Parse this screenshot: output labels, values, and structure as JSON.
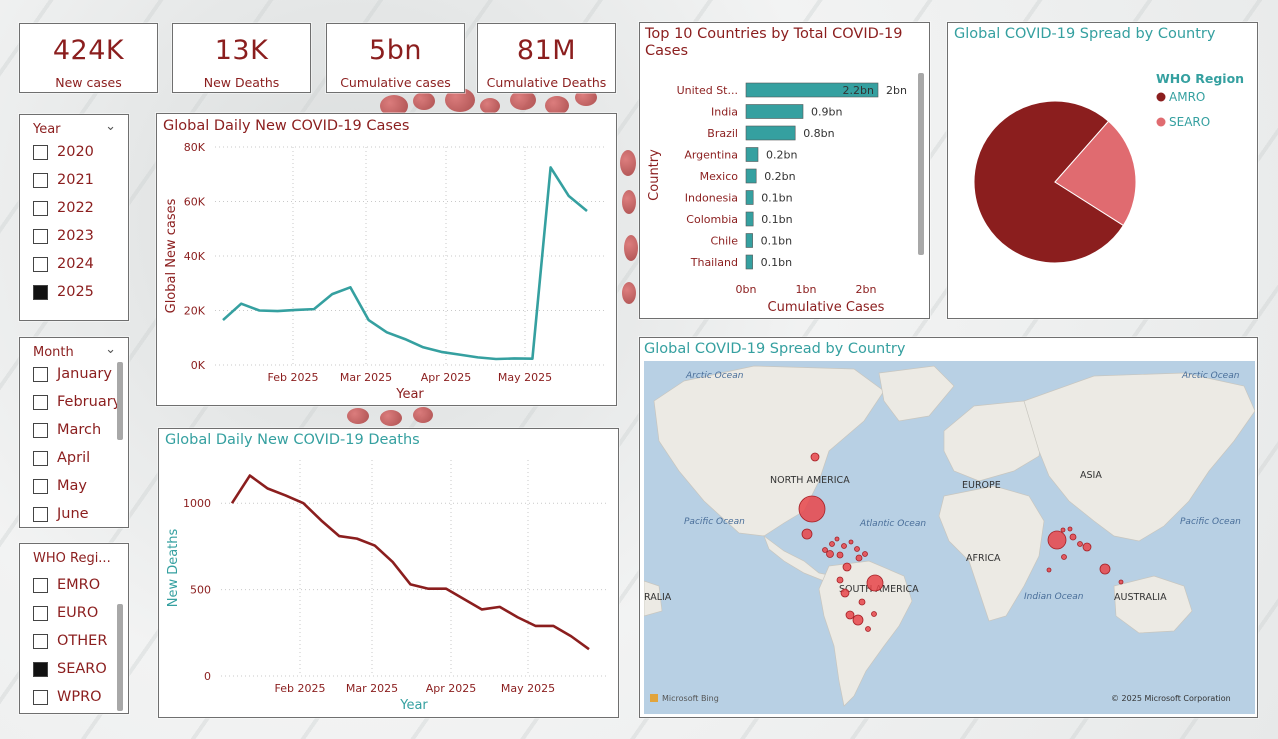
{
  "kpis": [
    {
      "value": "424K",
      "label": "New cases"
    },
    {
      "value": "13K",
      "label": "New Deaths"
    },
    {
      "value": "5bn",
      "label": "Cumulative cases"
    },
    {
      "value": "81M",
      "label": "Cumulative Deaths"
    }
  ],
  "slicers": {
    "year": {
      "title": "Year",
      "items": [
        {
          "label": "2020",
          "checked": false
        },
        {
          "label": "2021",
          "checked": false
        },
        {
          "label": "2022",
          "checked": false
        },
        {
          "label": "2023",
          "checked": false
        },
        {
          "label": "2024",
          "checked": false
        },
        {
          "label": "2025",
          "checked": true
        }
      ]
    },
    "month": {
      "title": "Month",
      "items": [
        {
          "label": "January",
          "checked": false
        },
        {
          "label": "February",
          "checked": false
        },
        {
          "label": "March",
          "checked": false
        },
        {
          "label": "April",
          "checked": false
        },
        {
          "label": "May",
          "checked": false
        },
        {
          "label": "June",
          "checked": false
        }
      ]
    },
    "who": {
      "title": "WHO Regi...",
      "items": [
        {
          "label": "EMRO",
          "checked": false
        },
        {
          "label": "EURO",
          "checked": false
        },
        {
          "label": "OTHER",
          "checked": false
        },
        {
          "label": "SEARO",
          "checked": true
        },
        {
          "label": "WPRO",
          "checked": false
        }
      ]
    }
  },
  "panels": {
    "cases_title": "Global Daily New COVID-19 Cases",
    "deaths_title": "Global Daily New COVID-19 Deaths",
    "top10_title_line1": "Top 10 Countries by Total COVID-19",
    "top10_title_line2": "Cases",
    "pie_title": "Global COVID-19 Spread by Country",
    "map_title": "Global COVID-19 Spread by Country"
  },
  "map": {
    "labels": {
      "arctic_left": "Arctic Ocean",
      "arctic_right": "Arctic Ocean",
      "north_america": "NORTH AMERICA",
      "europe": "EUROPE",
      "asia": "ASIA",
      "pacific_left": "Pacific Ocean",
      "atlantic": "Atlantic Ocean",
      "pacific_right": "Pacific Ocean",
      "africa": "AFRICA",
      "south_america": "SOUTH AMERICA",
      "ralia": "RALIA",
      "indian": "Indian Ocean",
      "australia": "AUSTRALIA",
      "bing": "Microsoft Bing",
      "copyright": "© 2025 Microsoft Corporation"
    }
  },
  "colors": {
    "teal": "#35a0a0",
    "maroon": "#8b1e1e",
    "pink": "#e06b70"
  },
  "chart_data": [
    {
      "type": "line",
      "title": "Global Daily New COVID-19 Cases",
      "xlabel": "Year",
      "ylabel": "Global New cases",
      "x_ticks": [
        "Feb 2025",
        "Mar 2025",
        "Apr 2025",
        "May 2025"
      ],
      "y_ticks": [
        "0K",
        "20K",
        "40K",
        "60K",
        "80K"
      ],
      "ylim": [
        0,
        80000
      ],
      "series": [
        {
          "values": [
            16500,
            22500,
            20000,
            19800,
            20200,
            20500,
            26000,
            28500,
            16500,
            12000,
            9500,
            6500,
            4800,
            3800,
            2800,
            2200,
            2400,
            2300,
            72500,
            62000,
            56500
          ]
        }
      ]
    },
    {
      "type": "line",
      "title": "Global Daily New COVID-19 Deaths",
      "xlabel": "Year",
      "ylabel": "New Deaths",
      "x_ticks": [
        "Feb 2025",
        "Mar 2025",
        "Apr 2025",
        "May 2025"
      ],
      "y_ticks": [
        "0",
        "500",
        "1000"
      ],
      "ylim": [
        0,
        1250
      ],
      "series": [
        {
          "values": [
            1000,
            1160,
            1085,
            1045,
            1000,
            900,
            810,
            795,
            755,
            660,
            530,
            505,
            505,
            445,
            385,
            400,
            340,
            290,
            290,
            230,
            155
          ]
        }
      ]
    },
    {
      "type": "bar",
      "title": "Top 10 Countries by Total COVID-19 Cases",
      "xlabel": "Cumulative Cases",
      "ylabel": "Country",
      "x_ticks": [
        "0bn",
        "1bn",
        "2bn"
      ],
      "categories": [
        "United St...",
        "India",
        "Brazil",
        "Argentina",
        "Mexico",
        "Indonesia",
        "Colombia",
        "Chile",
        "Thailand"
      ],
      "values": [
        2.2,
        0.95,
        0.82,
        0.2,
        0.17,
        0.12,
        0.12,
        0.11,
        0.11
      ],
      "value_labels": [
        "2.2bn",
        "0.9bn",
        "0.8bn",
        "0.2bn",
        "0.2bn",
        "0.1bn",
        "0.1bn",
        "0.1bn",
        "0.1bn"
      ],
      "extra_label": "2bn"
    },
    {
      "type": "pie",
      "title": "Global COVID-19 Spread by Country",
      "legend_title": "WHO Region",
      "slices": [
        {
          "name": "AMRO",
          "value": 77.5,
          "color": "#8b1e1e"
        },
        {
          "name": "SEARO",
          "value": 22.5,
          "color": "#e06b70"
        }
      ]
    }
  ]
}
